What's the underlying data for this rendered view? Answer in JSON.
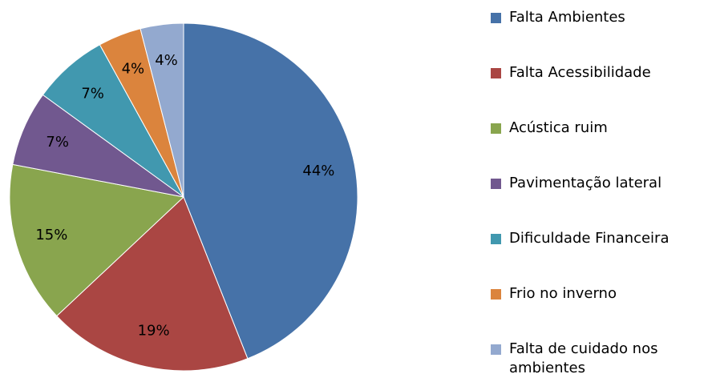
{
  "chart_data": {
    "type": "pie",
    "labels": [
      "Falta Ambientes",
      "Falta Acessibilidade",
      "Acústica ruim",
      "Pavimentação lateral",
      "Dificuldade Financeira",
      "Frio no inverno",
      "Falta de cuidado nos ambientes"
    ],
    "values": [
      44,
      19,
      15,
      7,
      7,
      4,
      4
    ],
    "value_labels": [
      "44%",
      "19%",
      "15%",
      "7%",
      "7%",
      "4%",
      "4%"
    ],
    "colors": [
      "#4672a8",
      "#aa4643",
      "#89a54e",
      "#71588f",
      "#4198af",
      "#db843d",
      "#93a9cf"
    ],
    "legend": "right"
  }
}
